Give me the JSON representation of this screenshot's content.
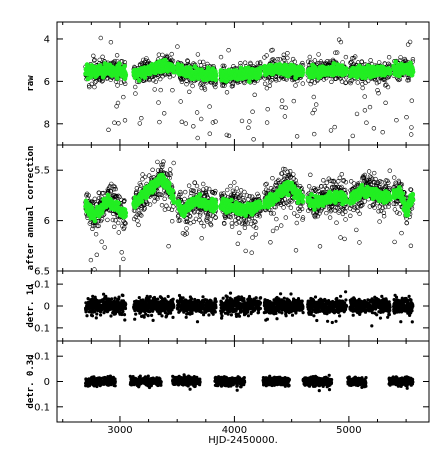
{
  "chart_data": {
    "type": "scatter",
    "xlabel": "HJD-2450000.",
    "xlim": [
      2450,
      5700
    ],
    "x_ticks": [
      "3000",
      "4000",
      "5000"
    ],
    "x_tick_values": [
      3000,
      4000,
      5000
    ],
    "grid": false,
    "colors": {
      "open_points": "#000000",
      "smoothed": "#22ee22",
      "filled_points": "#000000"
    },
    "panels": [
      {
        "ylabel": "raw",
        "ylim": [
          3.2,
          9.0
        ],
        "y_inverted": true,
        "y_ticks": [
          "4",
          "6",
          "8"
        ],
        "y_tick_values": [
          4,
          6,
          8
        ],
        "x_range": [
          2700,
          5560
        ],
        "marker": "open-circle",
        "noise": 0.35,
        "outlier_fraction": 0.09,
        "outlier_spread": 2.6,
        "baseline": [
          [
            2700,
            5.55
          ],
          [
            2900,
            5.45
          ],
          [
            3150,
            5.65
          ],
          [
            3400,
            5.25
          ],
          [
            3650,
            5.65
          ],
          [
            3900,
            5.75
          ],
          [
            4150,
            5.65
          ],
          [
            4400,
            5.45
          ],
          [
            4600,
            5.6
          ],
          [
            4850,
            5.45
          ],
          [
            5100,
            5.6
          ],
          [
            5350,
            5.5
          ],
          [
            5560,
            5.4
          ]
        ],
        "smoothed": true,
        "smoothed_noise": 0.18,
        "seasons": [
          [
            2700,
            3050
          ],
          [
            3120,
            3470
          ],
          [
            3500,
            3840
          ],
          [
            3880,
            4230
          ],
          [
            4260,
            4600
          ],
          [
            4640,
            4980
          ],
          [
            5010,
            5360
          ],
          [
            5390,
            5560
          ]
        ]
      },
      {
        "ylabel": "after annual correction",
        "ylim": [
          5.25,
          6.5
        ],
        "y_inverted": true,
        "y_ticks": [
          "5.5",
          "6",
          "6.5"
        ],
        "y_tick_values": [
          5.5,
          6.0,
          6.5
        ],
        "x_range": [
          2700,
          5560
        ],
        "marker": "open-circle",
        "noise": 0.12,
        "outlier_fraction": 0.06,
        "outlier_spread": 0.45,
        "baseline": [
          [
            2700,
            5.85
          ],
          [
            2780,
            5.95
          ],
          [
            2900,
            5.8
          ],
          [
            3050,
            5.95
          ],
          [
            3150,
            5.8
          ],
          [
            3300,
            5.65
          ],
          [
            3360,
            5.57
          ],
          [
            3450,
            5.72
          ],
          [
            3550,
            5.92
          ],
          [
            3650,
            5.8
          ],
          [
            3800,
            5.85
          ],
          [
            3950,
            5.85
          ],
          [
            4100,
            5.9
          ],
          [
            4300,
            5.82
          ],
          [
            4480,
            5.65
          ],
          [
            4550,
            5.75
          ],
          [
            4700,
            5.83
          ],
          [
            4900,
            5.75
          ],
          [
            5000,
            5.8
          ],
          [
            5150,
            5.7
          ],
          [
            5300,
            5.78
          ],
          [
            5450,
            5.72
          ],
          [
            5500,
            5.92
          ],
          [
            5560,
            5.75
          ]
        ],
        "smoothed": true,
        "smoothed_noise": 0.04,
        "seasons": [
          [
            2700,
            3050
          ],
          [
            3120,
            3470
          ],
          [
            3500,
            3840
          ],
          [
            3880,
            4230
          ],
          [
            4260,
            4600
          ],
          [
            4640,
            4980
          ],
          [
            5010,
            5360
          ],
          [
            5390,
            5560
          ]
        ]
      },
      {
        "ylabel": "detr. 1d",
        "ylim": [
          -0.16,
          0.16
        ],
        "y_inverted": true,
        "y_ticks": [
          "-0.1",
          "0",
          "0.1"
        ],
        "y_tick_values": [
          -0.1,
          0.0,
          0.1
        ],
        "x_range": [
          2700,
          5560
        ],
        "marker": "filled-dot",
        "noise": 0.025,
        "outlier_fraction": 0.03,
        "outlier_spread": 0.07,
        "baseline": [
          [
            2700,
            0.0
          ],
          [
            5560,
            0.0
          ]
        ],
        "smoothed": false,
        "seasons": [
          [
            2700,
            3050
          ],
          [
            3120,
            3470
          ],
          [
            3500,
            3840
          ],
          [
            3880,
            4230
          ],
          [
            4260,
            4600
          ],
          [
            4640,
            4980
          ],
          [
            5010,
            5360
          ],
          [
            5390,
            5560
          ]
        ]
      },
      {
        "ylabel": "detr. 0.3d",
        "ylim": [
          -0.16,
          0.16
        ],
        "y_inverted": true,
        "y_ticks": [
          "-0.1",
          "0",
          "0.1"
        ],
        "y_tick_values": [
          -0.1,
          0.0,
          0.1
        ],
        "x_range": [
          2700,
          5560
        ],
        "marker": "filled-dot",
        "noise": 0.012,
        "outlier_fraction": 0.01,
        "outlier_spread": 0.03,
        "baseline": [
          [
            2700,
            0.0
          ],
          [
            5560,
            0.0
          ]
        ],
        "smoothed": false,
        "seasons": [
          [
            2700,
            2960
          ],
          [
            3090,
            3360
          ],
          [
            3460,
            3700
          ],
          [
            3830,
            4090
          ],
          [
            4250,
            4480
          ],
          [
            4600,
            4850
          ],
          [
            4990,
            5150
          ],
          [
            5350,
            5560
          ]
        ]
      }
    ]
  }
}
